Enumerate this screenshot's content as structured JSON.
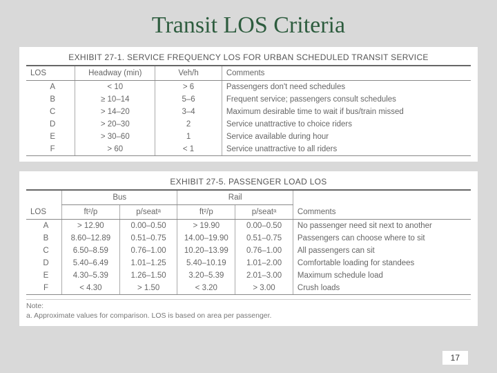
{
  "title": "Transit LOS Criteria",
  "page_number": "17",
  "exhibit1": {
    "title": "EXHIBIT 27-1.  SERVICE FREQUENCY LOS FOR URBAN SCHEDULED TRANSIT SERVICE",
    "columns": [
      "LOS",
      "Headway (min)",
      "Veh/h",
      "Comments"
    ],
    "rows": [
      [
        "A",
        "< 10",
        "> 6",
        "Passengers don't need schedules"
      ],
      [
        "B",
        "≥ 10–14",
        "5–6",
        "Frequent service; passengers consult schedules"
      ],
      [
        "C",
        "> 14–20",
        "3–4",
        "Maximum desirable time to wait if bus/train missed"
      ],
      [
        "D",
        "> 20–30",
        "2",
        "Service unattractive to choice riders"
      ],
      [
        "E",
        "> 30–60",
        "1",
        "Service available during hour"
      ],
      [
        "F",
        "> 60",
        "< 1",
        "Service unattractive to all riders"
      ]
    ]
  },
  "exhibit2": {
    "title": "EXHIBIT 27-5.  PASSENGER LOAD LOS",
    "group_headers": [
      "",
      "Bus",
      "Rail",
      ""
    ],
    "columns": [
      "LOS",
      "ft²/p",
      "p/seatᵃ",
      "ft²/p",
      "p/seatᵃ",
      "Comments"
    ],
    "rows": [
      [
        "A",
        "> 12.90",
        "0.00–0.50",
        "> 19.90",
        "0.00–0.50",
        "No passenger need sit next to another"
      ],
      [
        "B",
        "8.60–12.89",
        "0.51–0.75",
        "14.00–19.90",
        "0.51–0.75",
        "Passengers can choose where to sit"
      ],
      [
        "C",
        "6.50–8.59",
        "0.76–1.00",
        "10.20–13.99",
        "0.76–1.00",
        "All passengers can sit"
      ],
      [
        "D",
        "5.40–6.49",
        "1.01–1.25",
        "5.40–10.19",
        "1.01–2.00",
        "Comfortable loading for standees"
      ],
      [
        "E",
        "4.30–5.39",
        "1.26–1.50",
        "3.20–5.39",
        "2.01–3.00",
        "Maximum schedule load"
      ],
      [
        "F",
        "< 4.30",
        "> 1.50",
        "< 3.20",
        "> 3.00",
        "Crush loads"
      ]
    ],
    "note_label": "Note:",
    "note_text": "a.  Approximate values for comparison.  LOS is based on area per passenger."
  }
}
